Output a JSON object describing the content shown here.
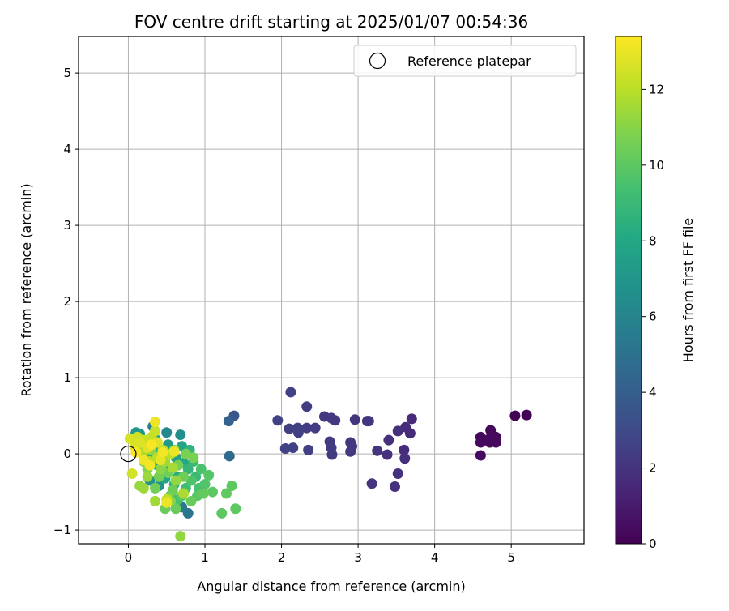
{
  "chart_data": {
    "type": "scatter",
    "title": "FOV centre drift starting at 2025/01/07 00:54:36",
    "xlabel": "Angular distance from reference (arcmin)",
    "ylabel": "Rotation from reference (arcmin)",
    "xlim": [
      -0.65,
      5.95
    ],
    "ylim": [
      -1.18,
      5.48
    ],
    "xticks": [
      0,
      1,
      2,
      3,
      4,
      5
    ],
    "yticks": [
      -1,
      0,
      1,
      2,
      3,
      4,
      5
    ],
    "xtick_labels": [
      "0",
      "1",
      "2",
      "3",
      "4",
      "5"
    ],
    "ytick_labels": [
      "−1",
      "0",
      "1",
      "2",
      "3",
      "4",
      "5"
    ],
    "grid": true,
    "legend": {
      "placement": "top-right",
      "entries": [
        "Reference platepar"
      ]
    },
    "reference_point": {
      "x": 0,
      "y": 0
    },
    "colorbar": {
      "label": "Hours from first FF file",
      "colormap": "viridis",
      "range": [
        0,
        13.4
      ],
      "ticks": [
        0,
        2,
        4,
        6,
        8,
        10,
        12
      ],
      "tick_labels": [
        "0",
        "2",
        "4",
        "6",
        "8",
        "10",
        "12"
      ]
    },
    "points": [
      {
        "x": 5.05,
        "y": 0.5,
        "t": 0.1
      },
      {
        "x": 5.2,
        "y": 0.51,
        "t": 0.05
      },
      {
        "x": 4.6,
        "y": 0.22,
        "t": 0.3
      },
      {
        "x": 4.6,
        "y": 0.15,
        "t": 0.35
      },
      {
        "x": 4.6,
        "y": -0.02,
        "t": 0.4
      },
      {
        "x": 4.73,
        "y": 0.31,
        "t": 0.3
      },
      {
        "x": 4.72,
        "y": 0.2,
        "t": 0.35
      },
      {
        "x": 4.72,
        "y": 0.15,
        "t": 0.3
      },
      {
        "x": 4.8,
        "y": 0.22,
        "t": 0.3
      },
      {
        "x": 4.8,
        "y": 0.15,
        "t": 0.35
      },
      {
        "x": 3.7,
        "y": 0.46,
        "t": 1.6
      },
      {
        "x": 3.62,
        "y": 0.35,
        "t": 1.7
      },
      {
        "x": 3.68,
        "y": 0.27,
        "t": 1.6
      },
      {
        "x": 3.52,
        "y": 0.3,
        "t": 1.8
      },
      {
        "x": 3.4,
        "y": 0.18,
        "t": 1.8
      },
      {
        "x": 3.6,
        "y": 0.05,
        "t": 1.7
      },
      {
        "x": 3.61,
        "y": -0.06,
        "t": 1.8
      },
      {
        "x": 3.48,
        "y": -0.43,
        "t": 1.9
      },
      {
        "x": 3.52,
        "y": -0.26,
        "t": 1.9
      },
      {
        "x": 3.38,
        "y": -0.01,
        "t": 1.9
      },
      {
        "x": 3.25,
        "y": 0.04,
        "t": 2.0
      },
      {
        "x": 3.18,
        "y": -0.39,
        "t": 2.0
      },
      {
        "x": 3.12,
        "y": 0.43,
        "t": 2.0
      },
      {
        "x": 3.14,
        "y": 0.43,
        "t": 2.1
      },
      {
        "x": 2.96,
        "y": 0.45,
        "t": 2.0
      },
      {
        "x": 2.9,
        "y": 0.15,
        "t": 2.1
      },
      {
        "x": 2.92,
        "y": 0.1,
        "t": 2.1
      },
      {
        "x": 2.9,
        "y": 0.03,
        "t": 2.2
      },
      {
        "x": 2.65,
        "y": 0.47,
        "t": 2.2
      },
      {
        "x": 2.7,
        "y": 0.44,
        "t": 2.2
      },
      {
        "x": 2.56,
        "y": 0.49,
        "t": 2.2
      },
      {
        "x": 2.63,
        "y": 0.16,
        "t": 2.3
      },
      {
        "x": 2.65,
        "y": 0.08,
        "t": 2.3
      },
      {
        "x": 2.66,
        "y": -0.01,
        "t": 2.3
      },
      {
        "x": 2.44,
        "y": 0.34,
        "t": 2.4
      },
      {
        "x": 2.33,
        "y": 0.34,
        "t": 2.4
      },
      {
        "x": 2.33,
        "y": 0.62,
        "t": 2.4
      },
      {
        "x": 2.35,
        "y": 0.05,
        "t": 2.5
      },
      {
        "x": 2.21,
        "y": 0.34,
        "t": 2.5
      },
      {
        "x": 2.22,
        "y": 0.28,
        "t": 2.5
      },
      {
        "x": 2.1,
        "y": 0.33,
        "t": 2.5
      },
      {
        "x": 2.12,
        "y": 0.81,
        "t": 2.6
      },
      {
        "x": 2.15,
        "y": 0.08,
        "t": 2.6
      },
      {
        "x": 2.05,
        "y": 0.07,
        "t": 2.6
      },
      {
        "x": 1.95,
        "y": 0.44,
        "t": 2.6
      },
      {
        "x": 1.38,
        "y": 0.5,
        "t": 3.6
      },
      {
        "x": 1.31,
        "y": 0.43,
        "t": 4.2
      },
      {
        "x": 1.32,
        "y": -0.03,
        "t": 4.6
      },
      {
        "x": 0.78,
        "y": -0.78,
        "t": 5.2
      },
      {
        "x": 0.7,
        "y": -0.7,
        "t": 5.4
      },
      {
        "x": 0.5,
        "y": 0.28,
        "t": 6.2
      },
      {
        "x": 0.68,
        "y": 0.25,
        "t": 6.6
      },
      {
        "x": 0.32,
        "y": 0.36,
        "t": 5.8
      },
      {
        "x": 0.1,
        "y": 0.28,
        "t": 6.8
      },
      {
        "x": 0.15,
        "y": 0.26,
        "t": 7.0
      },
      {
        "x": 0.08,
        "y": 0.24,
        "t": 7.2
      },
      {
        "x": 0.35,
        "y": 0.2,
        "t": 7.4
      },
      {
        "x": 0.28,
        "y": -0.35,
        "t": 6.8
      },
      {
        "x": 0.4,
        "y": -0.42,
        "t": 6.9
      },
      {
        "x": 0.52,
        "y": 0.12,
        "t": 7.2
      },
      {
        "x": 0.58,
        "y": 0.05,
        "t": 7.3
      },
      {
        "x": 0.62,
        "y": -0.05,
        "t": 7.5
      },
      {
        "x": 0.45,
        "y": -0.1,
        "t": 7.6
      },
      {
        "x": 0.55,
        "y": -0.2,
        "t": 7.8
      },
      {
        "x": 0.7,
        "y": 0.1,
        "t": 7.8
      },
      {
        "x": 0.72,
        "y": -0.12,
        "t": 8.0
      },
      {
        "x": 0.48,
        "y": -0.32,
        "t": 8.0
      },
      {
        "x": 0.38,
        "y": -0.15,
        "t": 8.2
      },
      {
        "x": 0.65,
        "y": -0.3,
        "t": 8.3
      },
      {
        "x": 0.42,
        "y": 0.05,
        "t": 8.3
      },
      {
        "x": 0.3,
        "y": -0.05,
        "t": 8.4
      },
      {
        "x": 0.6,
        "y": -0.4,
        "t": 8.6
      },
      {
        "x": 0.8,
        "y": 0.05,
        "t": 8.6
      },
      {
        "x": 0.78,
        "y": -0.2,
        "t": 8.8
      },
      {
        "x": 0.85,
        "y": -0.1,
        "t": 9.0
      },
      {
        "x": 0.88,
        "y": -0.3,
        "t": 9.0
      },
      {
        "x": 0.75,
        "y": -0.45,
        "t": 9.2
      },
      {
        "x": 0.55,
        "y": -0.55,
        "t": 9.2
      },
      {
        "x": 0.65,
        "y": -0.6,
        "t": 9.4
      },
      {
        "x": 0.92,
        "y": -0.45,
        "t": 9.4
      },
      {
        "x": 0.95,
        "y": -0.2,
        "t": 9.5
      },
      {
        "x": 0.82,
        "y": -0.35,
        "t": 9.6
      },
      {
        "x": 1.0,
        "y": -0.4,
        "t": 9.7
      },
      {
        "x": 1.05,
        "y": -0.28,
        "t": 9.8
      },
      {
        "x": 0.9,
        "y": -0.55,
        "t": 9.9
      },
      {
        "x": 0.7,
        "y": -0.55,
        "t": 9.9
      },
      {
        "x": 1.1,
        "y": -0.5,
        "t": 10.0
      },
      {
        "x": 1.22,
        "y": -0.78,
        "t": 10.0
      },
      {
        "x": 1.28,
        "y": -0.52,
        "t": 10.1
      },
      {
        "x": 1.35,
        "y": -0.42,
        "t": 10.0
      },
      {
        "x": 1.4,
        "y": -0.72,
        "t": 10.0
      },
      {
        "x": 0.98,
        "y": -0.52,
        "t": 10.2
      },
      {
        "x": 0.62,
        "y": -0.72,
        "t": 10.3
      },
      {
        "x": 0.48,
        "y": -0.72,
        "t": 10.3
      },
      {
        "x": 0.82,
        "y": -0.62,
        "t": 10.3
      },
      {
        "x": 0.58,
        "y": -0.48,
        "t": 10.4
      },
      {
        "x": 0.72,
        "y": -0.3,
        "t": 10.4
      },
      {
        "x": 0.52,
        "y": -0.25,
        "t": 10.5
      },
      {
        "x": 0.35,
        "y": -0.45,
        "t": 10.5
      },
      {
        "x": 0.4,
        "y": -0.3,
        "t": 10.6
      },
      {
        "x": 0.65,
        "y": -0.15,
        "t": 10.6
      },
      {
        "x": 0.75,
        "y": 0.0,
        "t": 10.7
      },
      {
        "x": 0.85,
        "y": -0.05,
        "t": 10.7
      },
      {
        "x": 0.6,
        "y": 0.05,
        "t": 10.8
      },
      {
        "x": 0.45,
        "y": -0.05,
        "t": 10.8
      },
      {
        "x": 0.25,
        "y": -0.2,
        "t": 10.9
      },
      {
        "x": 0.2,
        "y": -0.1,
        "t": 10.9
      },
      {
        "x": 0.55,
        "y": -0.62,
        "t": 11.0
      },
      {
        "x": 0.68,
        "y": -1.08,
        "t": 11.2
      },
      {
        "x": 0.52,
        "y": -0.58,
        "t": 11.1
      },
      {
        "x": 0.42,
        "y": -0.2,
        "t": 11.1
      },
      {
        "x": 0.3,
        "y": 0.05,
        "t": 11.2
      },
      {
        "x": 0.62,
        "y": -0.35,
        "t": 11.2
      },
      {
        "x": 0.15,
        "y": -0.42,
        "t": 11.3
      },
      {
        "x": 0.2,
        "y": -0.45,
        "t": 11.4
      },
      {
        "x": 0.25,
        "y": -0.3,
        "t": 11.4
      },
      {
        "x": 0.35,
        "y": -0.62,
        "t": 11.5
      },
      {
        "x": 0.48,
        "y": -0.1,
        "t": 11.5
      },
      {
        "x": 0.58,
        "y": -0.18,
        "t": 11.6
      },
      {
        "x": 0.72,
        "y": -0.52,
        "t": 11.7
      },
      {
        "x": 0.1,
        "y": 0.12,
        "t": 11.8
      },
      {
        "x": 0.18,
        "y": 0.02,
        "t": 11.8
      },
      {
        "x": 0.28,
        "y": -0.1,
        "t": 11.9
      },
      {
        "x": 0.38,
        "y": -0.05,
        "t": 12.0
      },
      {
        "x": 0.45,
        "y": 0.05,
        "t": 12.0
      },
      {
        "x": 0.55,
        "y": 0.0,
        "t": 12.1
      },
      {
        "x": 0.5,
        "y": -0.6,
        "t": 12.2
      },
      {
        "x": 0.3,
        "y": 0.22,
        "t": 12.2
      },
      {
        "x": 0.22,
        "y": 0.18,
        "t": 12.3
      },
      {
        "x": 0.35,
        "y": 0.3,
        "t": 12.3
      },
      {
        "x": 0.12,
        "y": 0.22,
        "t": 12.4
      },
      {
        "x": 0.05,
        "y": -0.26,
        "t": 12.5
      },
      {
        "x": 0.02,
        "y": 0.2,
        "t": 12.6
      },
      {
        "x": 0.08,
        "y": 0.1,
        "t": 12.6
      },
      {
        "x": 0.15,
        "y": 0.15,
        "t": 12.7
      },
      {
        "x": 0.25,
        "y": 0.08,
        "t": 12.8
      },
      {
        "x": 0.38,
        "y": 0.15,
        "t": 12.8
      },
      {
        "x": 0.42,
        "y": -0.08,
        "t": 12.9
      },
      {
        "x": 0.5,
        "y": -0.64,
        "t": 13.0
      },
      {
        "x": 0.6,
        "y": 0.03,
        "t": 13.0
      },
      {
        "x": 0.35,
        "y": 0.42,
        "t": 13.1
      },
      {
        "x": 0.2,
        "y": -0.08,
        "t": 13.1
      },
      {
        "x": 0.28,
        "y": -0.15,
        "t": 13.2
      },
      {
        "x": 0.45,
        "y": 0.02,
        "t": 13.2
      },
      {
        "x": 0.1,
        "y": 0.02,
        "t": 13.3
      },
      {
        "x": 0.3,
        "y": 0.12,
        "t": 13.3
      }
    ]
  }
}
